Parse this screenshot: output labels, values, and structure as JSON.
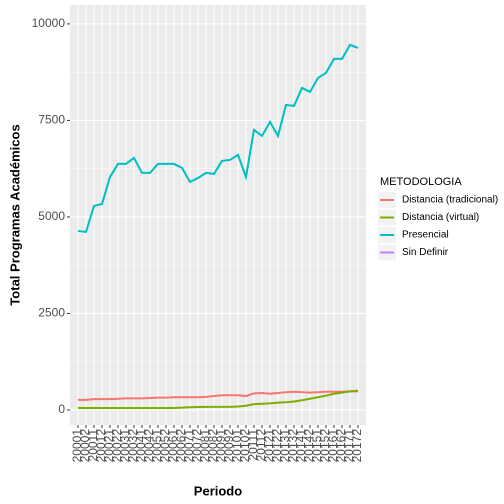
{
  "chart_data": {
    "type": "line",
    "x_label": "Periodo",
    "y_label": "Total Programas Académicos",
    "legend_title": "METODOLOGIA",
    "legend_position": "right",
    "grid": true,
    "categories": [
      "20001",
      "20002",
      "20011",
      "20012",
      "20021",
      "20022",
      "20031",
      "20032",
      "20041",
      "20042",
      "20051",
      "20052",
      "20061",
      "20062",
      "20071",
      "20072",
      "20081",
      "20082",
      "20091",
      "20092",
      "20101",
      "20102",
      "20111",
      "20112",
      "20121",
      "20122",
      "20131",
      "20132",
      "20141",
      "20142",
      "20151",
      "20152",
      "20161",
      "20162",
      "20171",
      "20172"
    ],
    "ylim": [
      -390,
      10490
    ],
    "yticks": [
      0,
      2500,
      5000,
      7500,
      10000
    ],
    "series": [
      {
        "name": "Distancia (tradicional)",
        "color": "#F8766D",
        "values": [
          260,
          260,
          280,
          280,
          280,
          290,
          300,
          300,
          300,
          310,
          320,
          320,
          330,
          330,
          330,
          330,
          340,
          360,
          380,
          380,
          380,
          360,
          430,
          440,
          420,
          440,
          460,
          470,
          460,
          450,
          460,
          470,
          470,
          470,
          480,
          480
        ]
      },
      {
        "name": "Distancia (virtual)",
        "color": "#7CAE00",
        "values": [
          50,
          50,
          50,
          50,
          50,
          50,
          50,
          50,
          50,
          50,
          50,
          50,
          50,
          60,
          70,
          75,
          80,
          80,
          80,
          80,
          90,
          110,
          150,
          160,
          170,
          190,
          200,
          220,
          250,
          290,
          330,
          370,
          420,
          450,
          480,
          500
        ]
      },
      {
        "name": "Presencial",
        "color": "#00BFC4",
        "values": [
          4637,
          4611,
          5285,
          5337,
          6036,
          6373,
          6373,
          6528,
          6140,
          6140,
          6373,
          6373,
          6373,
          6270,
          5907,
          6010,
          6140,
          6114,
          6451,
          6477,
          6606,
          6036,
          7254,
          7098,
          7461,
          7098,
          7901,
          7876,
          8342,
          8238,
          8601,
          8731,
          9093,
          9093,
          9456,
          9378
        ]
      },
      {
        "name": "Sin Definir",
        "color": "#C77CFF",
        "values": [
          null,
          null,
          null,
          null,
          null,
          null,
          null,
          null,
          null,
          null,
          null,
          null,
          null,
          null,
          null,
          null,
          null,
          null,
          null,
          null,
          null,
          null,
          null,
          null,
          null,
          null,
          null,
          null,
          null,
          null,
          null,
          null,
          null,
          null,
          null,
          null
        ]
      }
    ]
  }
}
